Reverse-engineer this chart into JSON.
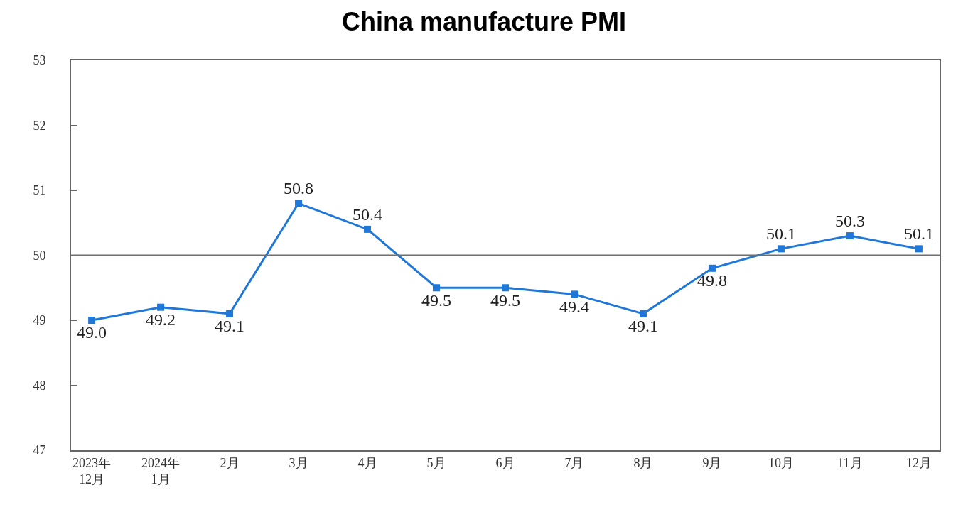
{
  "chart_data": {
    "type": "line",
    "title": "China manufacture PMI",
    "categories": [
      "2023年\n12月",
      "2024年\n1月",
      "2月",
      "3月",
      "4月",
      "5月",
      "6月",
      "7月",
      "8月",
      "9月",
      "10月",
      "11月",
      "12月"
    ],
    "series": [
      {
        "color": "#1f78d8",
        "values": [
          49.0,
          49.2,
          49.1,
          50.8,
          50.4,
          49.5,
          49.5,
          49.4,
          49.1,
          49.8,
          50.1,
          50.3,
          50.1
        ]
      }
    ],
    "ylim": [
      47,
      53
    ],
    "yticks": [
      47,
      48,
      49,
      50,
      51,
      52,
      53
    ],
    "ref_lines": [
      {
        "axis": "y",
        "value": 50,
        "color": "#6e6e6e"
      }
    ],
    "value_labels": [
      "49.0",
      "49.2",
      "49.1",
      "50.8",
      "50.4",
      "49.5",
      "49.5",
      "49.4",
      "49.1",
      "49.8",
      "50.1",
      "50.3",
      "50.1"
    ],
    "marker": "square",
    "line_style": "solid",
    "grid": false,
    "legend": false
  }
}
